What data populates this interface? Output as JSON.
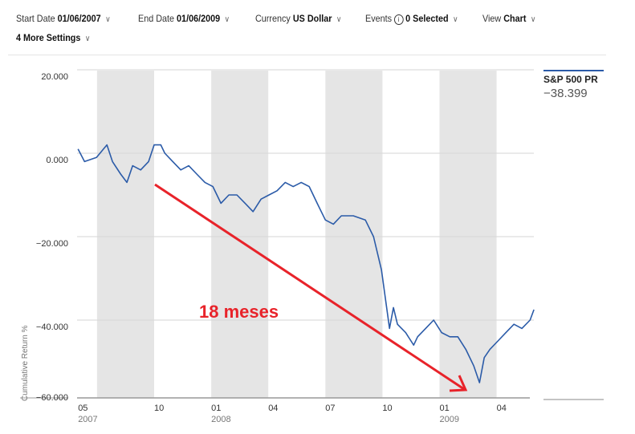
{
  "controls": {
    "start_date": {
      "label": "Start Date",
      "value": "01/06/2007"
    },
    "end_date": {
      "label": "End Date",
      "value": "01/06/2009"
    },
    "currency": {
      "label": "Currency",
      "value": "US Dollar"
    },
    "events": {
      "label": "Events",
      "value": "0 Selected"
    },
    "view": {
      "label": "View",
      "value": "Chart"
    },
    "more_settings": "4 More Settings"
  },
  "legend": {
    "name": "S&P 500 PR",
    "value": "−38.399",
    "color": "#2b5ba8"
  },
  "annotation": {
    "text": "18 meses",
    "color": "#e8232a"
  },
  "chart_data": {
    "type": "line",
    "ylabel": "Cumulative Return %",
    "ylim": [
      -60,
      20
    ],
    "xlim_months_since_2007_01": [
      6,
      29.96
    ],
    "yticks": [
      {
        "v": 20,
        "label": "20.000"
      },
      {
        "v": 0,
        "label": "0.000"
      },
      {
        "v": -20,
        "label": "−20.000"
      },
      {
        "v": -40,
        "label": "−40.000"
      },
      {
        "v": -60,
        "label": "−60.000"
      }
    ],
    "xticks": [
      {
        "m": 6,
        "label": "05",
        "year": "2007"
      },
      {
        "m": 10,
        "label": "10"
      },
      {
        "m": 13,
        "label": "01",
        "year": "2008"
      },
      {
        "m": 16,
        "label": "04"
      },
      {
        "m": 19,
        "label": "07"
      },
      {
        "m": 22,
        "label": "10"
      },
      {
        "m": 25,
        "label": "01",
        "year": "2009"
      },
      {
        "m": 28,
        "label": "04"
      }
    ],
    "shaded_bands": [
      [
        7,
        10
      ],
      [
        13,
        16
      ],
      [
        19,
        22
      ],
      [
        25,
        28
      ]
    ],
    "series": [
      {
        "name": "S&P 500 PR",
        "x": [
          6,
          6.34,
          6.97,
          7.52,
          7.81,
          8.24,
          8.57,
          8.87,
          9.29,
          9.71,
          10,
          10.35,
          10.56,
          10.98,
          11.4,
          11.82,
          12.24,
          12.67,
          13.09,
          13.51,
          13.93,
          14.35,
          14.78,
          15.2,
          15.62,
          16.04,
          16.46,
          16.89,
          17.31,
          17.73,
          18.15,
          18.57,
          19,
          19.42,
          19.84,
          20.47,
          21.1,
          21.53,
          21.95,
          22.16,
          22.37,
          22.58,
          22.79,
          23.22,
          23.64,
          23.85,
          24.27,
          24.69,
          25.11,
          25.54,
          25.96,
          26.38,
          26.8,
          27.1,
          27.35,
          27.65,
          28.07,
          28.49,
          28.91,
          29.33,
          29.76,
          29.96
        ],
        "y": [
          1,
          -2,
          -1,
          2,
          -2,
          -5,
          -7,
          -3,
          -4,
          -2,
          2,
          2,
          0,
          -2,
          -4,
          -3,
          -5,
          -7,
          -8,
          -12,
          -10,
          -10,
          -12,
          -14,
          -11,
          -10,
          -9,
          -7,
          -8,
          -7,
          -8,
          -12,
          -16,
          -17,
          -15,
          -15,
          -16,
          -20,
          -28,
          -35,
          -42,
          -37,
          -41,
          -43,
          -46,
          -44,
          -42,
          -40,
          -43,
          -44,
          -44,
          -47,
          -51,
          -55,
          -49,
          -47,
          -45,
          -43,
          -41,
          -42,
          -40,
          -37.5
        ]
      }
    ]
  }
}
